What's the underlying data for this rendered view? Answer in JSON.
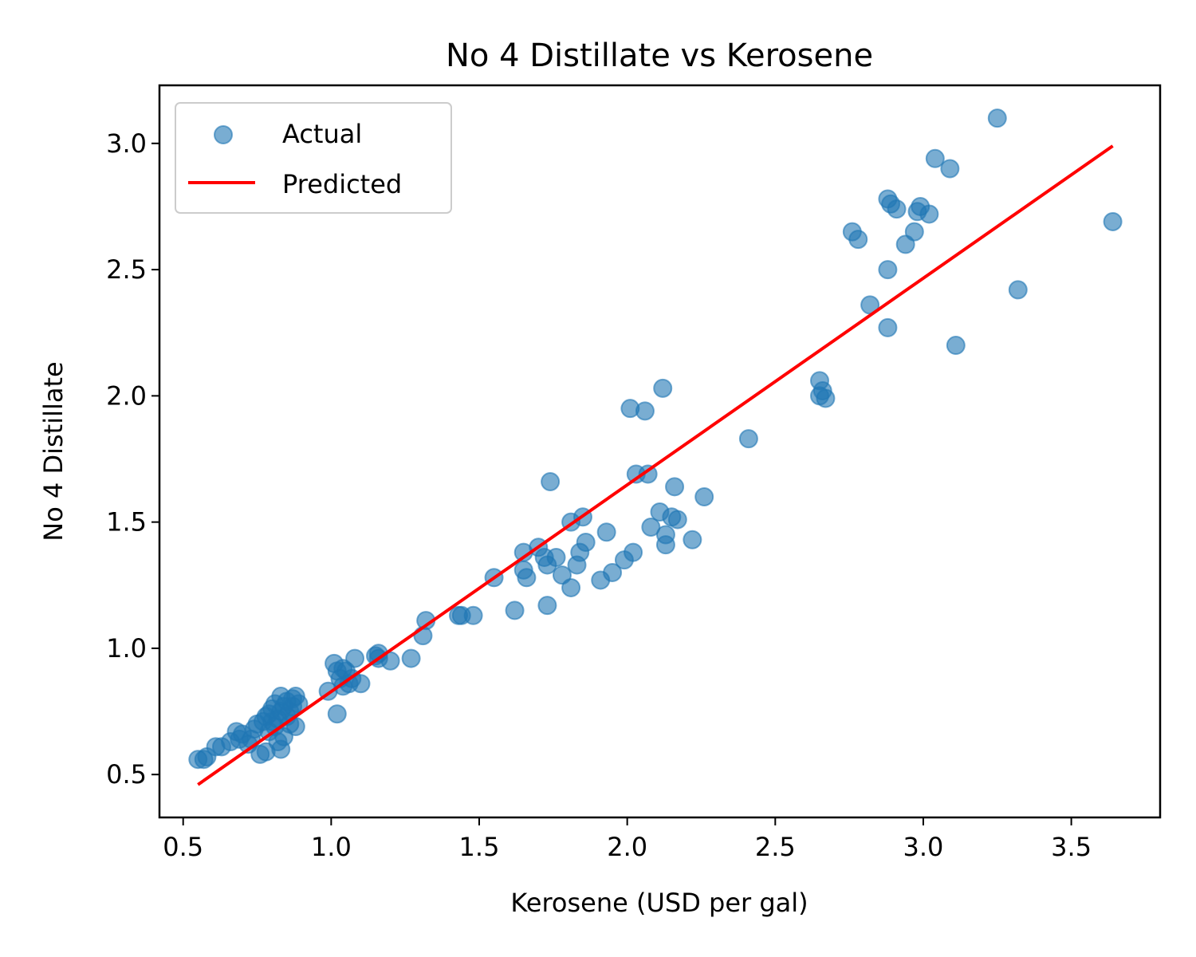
{
  "chart_data": {
    "type": "scatter",
    "title": "No 4 Distillate vs Kerosene",
    "xlabel": "Kerosene (USD per gal)",
    "ylabel": "No 4 Distillate",
    "xlim": [
      0.42,
      3.8
    ],
    "ylim": [
      0.33,
      3.23
    ],
    "xticks": [
      0.5,
      1.0,
      1.5,
      2.0,
      2.5,
      3.0,
      3.5
    ],
    "xtick_labels": [
      "0.5",
      "1.0",
      "1.5",
      "2.0",
      "2.5",
      "3.0",
      "3.5"
    ],
    "yticks": [
      0.5,
      1.0,
      1.5,
      2.0,
      2.5,
      3.0
    ],
    "ytick_labels": [
      "0.5",
      "1.0",
      "1.5",
      "2.0",
      "2.5",
      "3.0"
    ],
    "grid": false,
    "legend_position": "top-left",
    "legend": [
      "Actual",
      "Predicted"
    ],
    "series": [
      {
        "name": "Actual",
        "kind": "scatter",
        "color": "#1f77b4",
        "alpha": 0.6,
        "points": [
          [
            0.55,
            0.56
          ],
          [
            0.57,
            0.56
          ],
          [
            0.58,
            0.57
          ],
          [
            0.61,
            0.61
          ],
          [
            0.63,
            0.61
          ],
          [
            0.66,
            0.63
          ],
          [
            0.68,
            0.67
          ],
          [
            0.69,
            0.64
          ],
          [
            0.7,
            0.66
          ],
          [
            0.72,
            0.62
          ],
          [
            0.73,
            0.64
          ],
          [
            0.74,
            0.68
          ],
          [
            0.75,
            0.7
          ],
          [
            0.76,
            0.58
          ],
          [
            0.77,
            0.71
          ],
          [
            0.78,
            0.59
          ],
          [
            0.78,
            0.73
          ],
          [
            0.79,
            0.67
          ],
          [
            0.79,
            0.74
          ],
          [
            0.8,
            0.71
          ],
          [
            0.8,
            0.76
          ],
          [
            0.81,
            0.69
          ],
          [
            0.81,
            0.78
          ],
          [
            0.82,
            0.72
          ],
          [
            0.82,
            0.63
          ],
          [
            0.83,
            0.75
          ],
          [
            0.83,
            0.6
          ],
          [
            0.83,
            0.81
          ],
          [
            0.84,
            0.77
          ],
          [
            0.84,
            0.65
          ],
          [
            0.85,
            0.73
          ],
          [
            0.85,
            0.79
          ],
          [
            0.86,
            0.75
          ],
          [
            0.86,
            0.7
          ],
          [
            0.87,
            0.8
          ],
          [
            0.87,
            0.77
          ],
          [
            0.88,
            0.69
          ],
          [
            0.88,
            0.81
          ],
          [
            0.89,
            0.78
          ],
          [
            0.99,
            0.83
          ],
          [
            1.01,
            0.94
          ],
          [
            1.02,
            0.74
          ],
          [
            1.02,
            0.91
          ],
          [
            1.03,
            0.88
          ],
          [
            1.04,
            0.92
          ],
          [
            1.04,
            0.85
          ],
          [
            1.05,
            0.91
          ],
          [
            1.06,
            0.86
          ],
          [
            1.07,
            0.88
          ],
          [
            1.08,
            0.96
          ],
          [
            1.1,
            0.86
          ],
          [
            1.15,
            0.97
          ],
          [
            1.16,
            0.98
          ],
          [
            1.16,
            0.96
          ],
          [
            1.2,
            0.95
          ],
          [
            1.27,
            0.96
          ],
          [
            1.31,
            1.05
          ],
          [
            1.32,
            1.11
          ],
          [
            1.43,
            1.13
          ],
          [
            1.44,
            1.13
          ],
          [
            1.48,
            1.13
          ],
          [
            1.55,
            1.28
          ],
          [
            1.62,
            1.15
          ],
          [
            1.65,
            1.31
          ],
          [
            1.65,
            1.38
          ],
          [
            1.66,
            1.28
          ],
          [
            1.7,
            1.4
          ],
          [
            1.72,
            1.36
          ],
          [
            1.73,
            1.17
          ],
          [
            1.73,
            1.33
          ],
          [
            1.74,
            1.66
          ],
          [
            1.76,
            1.36
          ],
          [
            1.78,
            1.29
          ],
          [
            1.81,
            1.5
          ],
          [
            1.81,
            1.24
          ],
          [
            1.83,
            1.33
          ],
          [
            1.84,
            1.38
          ],
          [
            1.85,
            1.52
          ],
          [
            1.86,
            1.42
          ],
          [
            1.91,
            1.27
          ],
          [
            1.93,
            1.46
          ],
          [
            1.95,
            1.3
          ],
          [
            1.99,
            1.35
          ],
          [
            2.01,
            1.95
          ],
          [
            2.02,
            1.38
          ],
          [
            2.03,
            1.69
          ],
          [
            2.06,
            1.94
          ],
          [
            2.07,
            1.69
          ],
          [
            2.08,
            1.48
          ],
          [
            2.11,
            1.54
          ],
          [
            2.12,
            2.03
          ],
          [
            2.13,
            1.41
          ],
          [
            2.13,
            1.45
          ],
          [
            2.15,
            1.52
          ],
          [
            2.16,
            1.64
          ],
          [
            2.17,
            1.51
          ],
          [
            2.22,
            1.43
          ],
          [
            2.26,
            1.6
          ],
          [
            2.41,
            1.83
          ],
          [
            2.65,
            2.06
          ],
          [
            2.65,
            2.0
          ],
          [
            2.66,
            2.02
          ],
          [
            2.67,
            1.99
          ],
          [
            2.76,
            2.65
          ],
          [
            2.78,
            2.62
          ],
          [
            2.82,
            2.36
          ],
          [
            2.88,
            2.78
          ],
          [
            2.88,
            2.5
          ],
          [
            2.88,
            2.27
          ],
          [
            2.89,
            2.76
          ],
          [
            2.91,
            2.74
          ],
          [
            2.94,
            2.6
          ],
          [
            2.97,
            2.65
          ],
          [
            2.98,
            2.73
          ],
          [
            2.99,
            2.75
          ],
          [
            3.02,
            2.72
          ],
          [
            3.04,
            2.94
          ],
          [
            3.09,
            2.9
          ],
          [
            3.11,
            2.2
          ],
          [
            3.25,
            3.1
          ],
          [
            3.32,
            2.42
          ],
          [
            3.64,
            2.69
          ]
        ]
      },
      {
        "name": "Predicted",
        "kind": "line",
        "color": "#ff0000",
        "points": [
          [
            0.55,
            0.46
          ],
          [
            3.64,
            2.99
          ]
        ]
      }
    ]
  }
}
